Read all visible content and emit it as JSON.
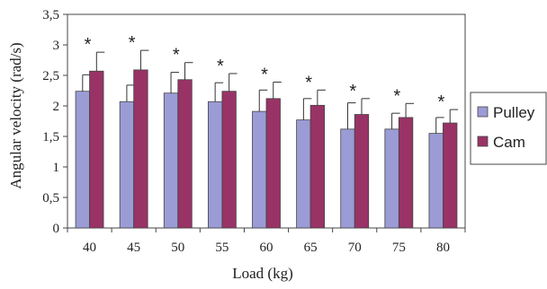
{
  "chart_data": {
    "type": "bar",
    "xlabel": "Load (kg)",
    "ylabel": "Angular velocity (rad/s)",
    "ylim": [
      0,
      3.5
    ],
    "yticks": [
      "0",
      "0,5",
      "1",
      "1,5",
      "2",
      "2,5",
      "3",
      "3,5"
    ],
    "categories": [
      "40",
      "45",
      "50",
      "55",
      "60",
      "65",
      "70",
      "75",
      "80"
    ],
    "series": [
      {
        "name": "Pulley",
        "color": "#9b9bd6",
        "values": [
          2.24,
          2.07,
          2.21,
          2.07,
          1.91,
          1.77,
          1.62,
          1.62,
          1.55
        ],
        "errors": [
          0.27,
          0.27,
          0.34,
          0.31,
          0.35,
          0.35,
          0.43,
          0.26,
          0.26
        ]
      },
      {
        "name": "Cam",
        "color": "#993366",
        "values": [
          2.57,
          2.59,
          2.43,
          2.24,
          2.12,
          2.01,
          1.86,
          1.81,
          1.72
        ],
        "errors": [
          0.31,
          0.32,
          0.28,
          0.29,
          0.27,
          0.25,
          0.26,
          0.23,
          0.22
        ]
      }
    ],
    "annotations": [
      "*",
      "*",
      "*",
      "*",
      "*",
      "*",
      "*",
      "*",
      "*"
    ],
    "legend": "right",
    "grid": false
  }
}
